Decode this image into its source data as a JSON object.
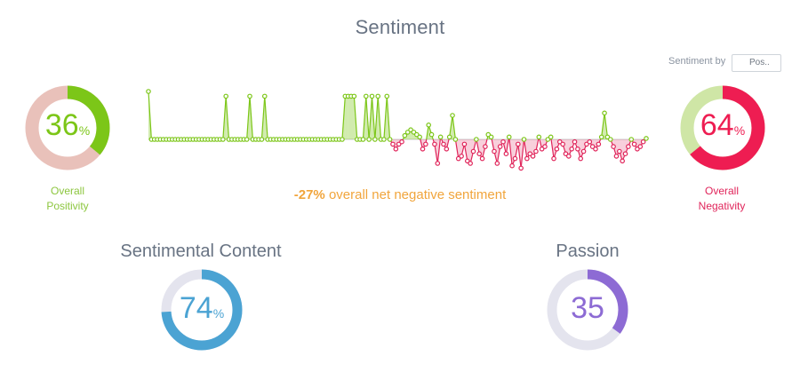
{
  "header": {
    "title": "Sentiment"
  },
  "controls": {
    "sentiment_by_label": "Sentiment by",
    "sort_value": "Pos.."
  },
  "positivity": {
    "value": "36",
    "unit": "%",
    "label_line1": "Overall",
    "label_line2": "Positivity",
    "fraction": 0.36,
    "color": "#7cc618",
    "track_color": "#e9c1ba"
  },
  "negativity": {
    "value": "64",
    "unit": "%",
    "label_line1": "Overall",
    "label_line2": "Negativity",
    "fraction": 0.64,
    "color": "#ee1d52",
    "track_color": "#cfe6a6"
  },
  "net_summary": {
    "value": "-27%",
    "text": "overall net negative sentiment",
    "color": "#f1a53c"
  },
  "sentimental_content": {
    "title": "Sentimental Content",
    "value": "74",
    "unit": "%",
    "fraction": 0.74,
    "color": "#4ba3d3",
    "track_color": "#e4e4ee"
  },
  "passion": {
    "title": "Passion",
    "value": "35",
    "fraction": 0.35,
    "color": "#8d6bd4",
    "track_color": "#e4e4ee"
  },
  "chart_data": {
    "type": "line",
    "description_free": true,
    "positive_color": "#7cc618",
    "negative_color": "#e0245a",
    "values": [
      1,
      0,
      0,
      0,
      0,
      0,
      0,
      0,
      0,
      0,
      0,
      0,
      0,
      0,
      0,
      0,
      0,
      0,
      0,
      0,
      0,
      0,
      0,
      0,
      0,
      0,
      0.9,
      0,
      0,
      0,
      0,
      0,
      0,
      0,
      0.9,
      0,
      0,
      0,
      0,
      0.9,
      0,
      0,
      0,
      0,
      0,
      0,
      0,
      0,
      0,
      0,
      0,
      0,
      0,
      0,
      0,
      0,
      0,
      0,
      0,
      0,
      0,
      0,
      0,
      0,
      0,
      0,
      0.9,
      0.9,
      0.9,
      0.9,
      0,
      0,
      0,
      0.9,
      0,
      0.9,
      0,
      0.9,
      0,
      0,
      0.9,
      0,
      -0.1,
      -0.2,
      -0.1,
      -0.05,
      0.08,
      0.15,
      0.2,
      0.15,
      0.1,
      0.05,
      -0.2,
      -0.1,
      0.3,
      0.1,
      -0.1,
      -0.5,
      0.05,
      -0.1,
      -0.2,
      0.05,
      0.5,
      0,
      -0.4,
      -0.35,
      -0.1,
      -0.45,
      -0.5,
      -0.25,
      0,
      -0.3,
      -0.4,
      -0.15,
      0.1,
      0.05,
      -0.25,
      -0.5,
      -0.15,
      -0.05,
      -0.3,
      0.05,
      -0.55,
      -0.4,
      -0.1,
      -0.6,
      0,
      -0.4,
      -0.3,
      -0.35,
      -0.25,
      0.05,
      -0.2,
      -0.15,
      0,
      0.05,
      -0.4,
      -0.2,
      -0.05,
      -0.1,
      -0.3,
      -0.35,
      -0.2,
      -0.05,
      -0.2,
      -0.4,
      -0.25,
      -0.1,
      -0.05,
      -0.15,
      -0.2,
      -0.1,
      0.05,
      0.55,
      0.05,
      0,
      -0.15,
      -0.35,
      -0.25,
      -0.45,
      -0.3,
      -0.15,
      0,
      -0.1,
      -0.2,
      -0.15,
      -0.05,
      0.02
    ]
  }
}
